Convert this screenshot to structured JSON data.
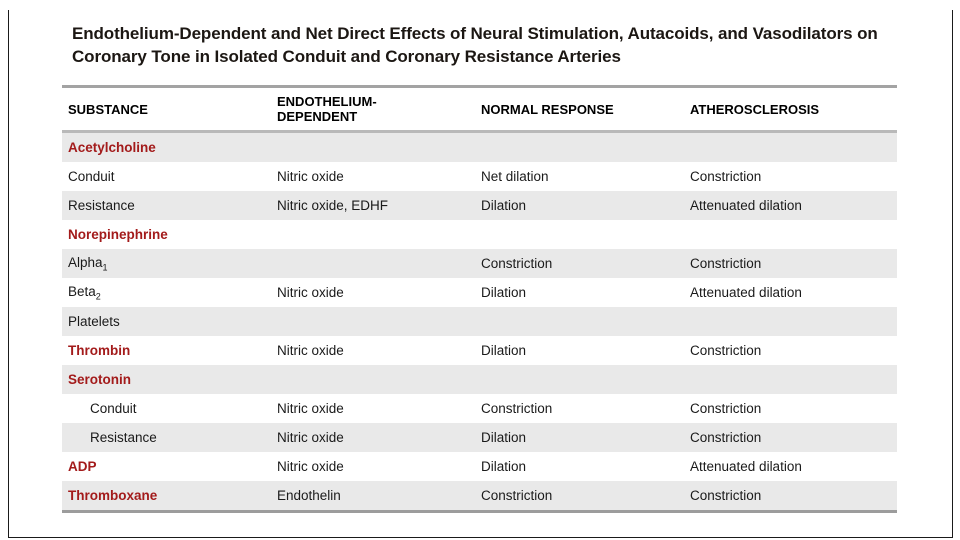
{
  "slide": {
    "title_lines": [
      "Endothelium-Dependent and Net Direct Effects of Neural Stimulation, Autacoids, and Vasodilators on",
      "Coronary Tone in Isolated Conduit and Coronary Resistance Arteries"
    ]
  },
  "colors": {
    "accent_red": "#a31b1b",
    "title_text": "#1c1713",
    "body_text": "#1a1a1a",
    "row_shade": "#e9e9e9",
    "rule_top": "#a3a3a3",
    "rule_mid": "#b9b9b9",
    "rule_bottom": "#9c9c9c"
  },
  "table": {
    "columns": [
      "SUBSTANCE",
      "ENDOTHELIUM-DEPENDENT",
      "NORMAL RESPONSE",
      "ATHEROSCLEROSIS"
    ],
    "rows": [
      {
        "substance": "Acetylcholine",
        "endothelium": "",
        "normal": "",
        "athero": ""
      },
      {
        "substance": "Conduit",
        "endothelium": "Nitric oxide",
        "normal": "Net dilation",
        "athero": "Constriction"
      },
      {
        "substance": "Resistance",
        "endothelium": "Nitric oxide, EDHF",
        "normal": "Dilation",
        "athero": "Attenuated dilation"
      },
      {
        "substance": "Norepinephrine",
        "endothelium": "",
        "normal": "",
        "athero": ""
      },
      {
        "substance": "Alpha",
        "substance_sub": "1",
        "endothelium": "",
        "normal": "Constriction",
        "athero": "Constriction"
      },
      {
        "substance": "Beta",
        "substance_sub": "2",
        "endothelium": "Nitric oxide",
        "normal": "Dilation",
        "athero": "Attenuated dilation"
      },
      {
        "substance": "Platelets",
        "endothelium": "",
        "normal": "",
        "athero": ""
      },
      {
        "substance": "Thrombin",
        "endothelium": "Nitric oxide",
        "normal": "Dilation",
        "athero": "Constriction"
      },
      {
        "substance": "Serotonin",
        "endothelium": "",
        "normal": "",
        "athero": ""
      },
      {
        "substance": "Conduit",
        "endothelium": "Nitric oxide",
        "normal": "Constriction",
        "athero": "Constriction"
      },
      {
        "substance": "Resistance",
        "endothelium": "Nitric oxide",
        "normal": "Dilation",
        "athero": "Constriction"
      },
      {
        "substance": "ADP",
        "endothelium": "Nitric oxide",
        "normal": "Dilation",
        "athero": "Attenuated dilation"
      },
      {
        "substance": "Thromboxane",
        "endothelium": "Endothelin",
        "normal": "Constriction",
        "athero": "Constriction"
      }
    ]
  }
}
